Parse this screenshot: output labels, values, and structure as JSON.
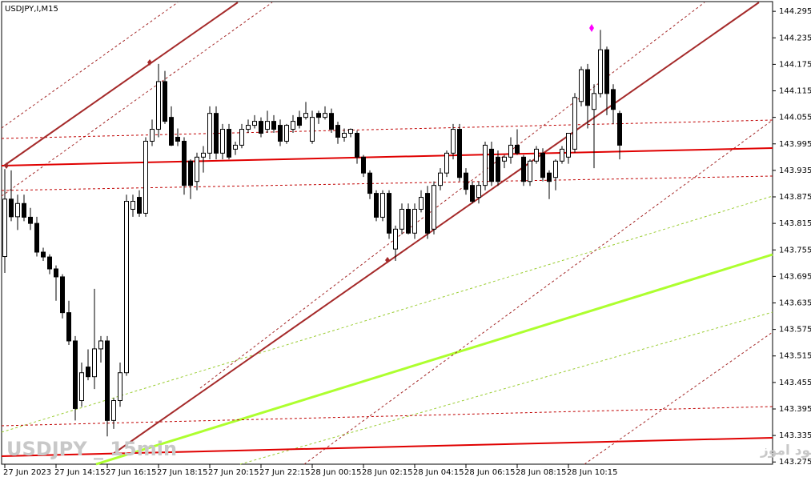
{
  "chart_data": {
    "type": "candlestick",
    "title": "USDJPY,I,M15",
    "watermark": "USDJPY _ 15min",
    "footer_text": "انتشار در سایت سود اموز",
    "categories": [
      "27 Jun 2023",
      null,
      null,
      null,
      null,
      null,
      null,
      null,
      "27 Jun 14:15",
      null,
      null,
      null,
      null,
      null,
      null,
      null,
      "27 Jun 16:15",
      null,
      null,
      null,
      null,
      null,
      null,
      null,
      "27 Jun 18:15",
      null,
      null,
      null,
      null,
      null,
      null,
      null,
      "27 Jun 20:15",
      null,
      null,
      null,
      null,
      null,
      null,
      null,
      "27 Jun 22:15",
      null,
      null,
      null,
      null,
      null,
      null,
      null,
      "28 Jun 00:15",
      null,
      null,
      null,
      null,
      null,
      null,
      null,
      "28 Jun 02:15",
      null,
      null,
      null,
      null,
      null,
      null,
      null,
      "28 Jun 04:15",
      null,
      null,
      null,
      null,
      null,
      null,
      null,
      "28 Jun 06:15",
      null,
      null,
      null,
      null,
      null,
      null,
      null,
      "28 Jun 08:15",
      null,
      null,
      null,
      null,
      null,
      null,
      null,
      "28 Jun 10:15",
      null,
      null,
      null,
      null,
      null,
      null,
      null,
      null
    ],
    "open": [
      143.74,
      143.87,
      143.83,
      143.86,
      143.829,
      143.815,
      143.75,
      143.739,
      143.712,
      143.694,
      143.613,
      143.549,
      143.414,
      143.49,
      143.468,
      143.531,
      143.549,
      143.369,
      143.414,
      143.477,
      143.847,
      143.874,
      143.838,
      144.001,
      144.028,
      144.136,
      144.055,
      144.01,
      144.001,
      143.956,
      143.91,
      143.965,
      143.974,
      144.064,
      143.974,
      144.028,
      143.983,
      143.992,
      144.028,
      144.037,
      144.046,
      144.028,
      144.046,
      144.037,
      144.001,
      144.028,
      144.055,
      144.055,
      144.001,
      144.064,
      144.055,
      144.064,
      144.037,
      144.01,
      144.019,
      144.019,
      143.965,
      143.929,
      143.883,
      143.829,
      143.883,
      143.757,
      143.802,
      143.847,
      143.793,
      143.847,
      143.883,
      143.802,
      143.901,
      143.929,
      143.974,
      144.028,
      143.929,
      143.901,
      143.874,
      143.901,
      143.983,
      143.965,
      143.956,
      143.965,
      143.992,
      143.965,
      143.91,
      143.956,
      143.974,
      143.929,
      143.919,
      143.956,
      143.965,
      143.983,
      144.091,
      144.163,
      144.073,
      144.109,
      144.208,
      144.118,
      144.064
    ],
    "high": [
      143.938,
      143.935,
      143.88,
      143.88,
      143.85,
      143.83,
      143.76,
      143.745,
      143.72,
      143.7,
      143.64,
      143.56,
      143.5,
      143.53,
      143.667,
      143.56,
      143.56,
      143.42,
      143.5,
      143.88,
      143.88,
      143.89,
      144.01,
      144.05,
      144.176,
      144.16,
      144.08,
      144.03,
      144.01,
      143.96,
      143.975,
      143.99,
      144.08,
      144.08,
      144.04,
      144.04,
      144.0,
      144.04,
      144.05,
      144.06,
      144.055,
      144.07,
      144.06,
      144.05,
      144.04,
      144.06,
      144.07,
      144.09,
      144.07,
      144.07,
      144.08,
      144.075,
      144.045,
      144.03,
      144.03,
      144.025,
      143.97,
      143.935,
      143.89,
      143.89,
      143.89,
      143.81,
      143.86,
      143.86,
      143.86,
      143.89,
      143.9,
      143.91,
      143.94,
      143.98,
      144.04,
      144.04,
      143.94,
      143.91,
      143.91,
      144.0,
      144.0,
      143.98,
      143.97,
      144.01,
      144.028,
      143.97,
      143.96,
      143.99,
      143.985,
      143.935,
      143.96,
      143.99,
      144.02,
      144.11,
      144.17,
      144.176,
      144.13,
      144.253,
      144.215,
      144.13,
      144.07
    ],
    "low": [
      143.703,
      143.82,
      143.8,
      143.82,
      143.8,
      143.74,
      143.73,
      143.7,
      143.64,
      143.6,
      143.54,
      143.369,
      143.4,
      143.46,
      143.44,
      143.5,
      143.333,
      143.35,
      143.4,
      143.47,
      143.83,
      143.83,
      143.83,
      143.99,
      144.01,
      144.04,
      143.99,
      143.99,
      143.88,
      143.87,
      143.89,
      143.93,
      143.96,
      143.96,
      143.96,
      143.96,
      143.97,
      143.985,
      144.02,
      144.03,
      144.01,
      144.02,
      144.02,
      143.99,
      143.995,
      144.02,
      144.03,
      144.05,
      143.995,
      144.04,
      144.05,
      144.02,
      143.995,
      144.0,
      144.01,
      143.95,
      143.92,
      143.87,
      143.82,
      143.82,
      143.78,
      143.73,
      143.79,
      143.79,
      143.78,
      143.84,
      143.78,
      143.79,
      143.89,
      143.92,
      143.96,
      143.91,
      143.88,
      143.86,
      143.86,
      143.89,
      143.9,
      143.9,
      143.94,
      143.95,
      143.97,
      143.9,
      143.9,
      143.95,
      143.91,
      143.87,
      143.89,
      143.95,
      143.95,
      143.975,
      144.08,
      144.03,
      143.94,
      144.1,
      144.06,
      144.04,
      143.96
    ],
    "close": [
      143.87,
      143.83,
      143.86,
      143.829,
      143.815,
      143.75,
      143.739,
      143.712,
      143.694,
      143.613,
      143.549,
      143.396,
      143.477,
      143.468,
      143.531,
      143.549,
      143.369,
      143.414,
      143.477,
      143.865,
      143.865,
      143.838,
      144.001,
      144.028,
      144.136,
      144.046,
      143.992,
      144.001,
      143.901,
      143.901,
      143.965,
      143.974,
      144.064,
      143.974,
      144.028,
      143.965,
      143.992,
      144.028,
      144.037,
      144.046,
      144.019,
      144.046,
      144.028,
      144.001,
      144.037,
      144.046,
      144.037,
      144.064,
      144.055,
      144.055,
      144.064,
      144.028,
      144.01,
      144.019,
      144.028,
      143.965,
      143.929,
      143.883,
      143.829,
      143.883,
      143.793,
      143.802,
      143.847,
      143.793,
      143.847,
      143.874,
      143.793,
      143.901,
      143.929,
      143.974,
      144.028,
      143.919,
      143.892,
      143.865,
      143.901,
      143.992,
      143.91,
      143.91,
      143.965,
      143.992,
      143.974,
      143.91,
      143.956,
      143.983,
      143.919,
      143.91,
      143.956,
      143.983,
      144.019,
      144.1,
      144.163,
      144.082,
      144.109,
      144.208,
      144.109,
      144.073,
      143.992
    ],
    "up_color": "#ffffff",
    "down_color": "#000000",
    "wick_color": "#000000",
    "ylim": [
      143.27,
      144.317
    ],
    "yticks": [
      144.295,
      144.235,
      144.175,
      144.115,
      144.055,
      143.995,
      143.935,
      143.875,
      143.815,
      143.755,
      143.695,
      143.635,
      143.575,
      143.515,
      143.455,
      143.395,
      143.335,
      143.275
    ],
    "grid": false
  }
}
